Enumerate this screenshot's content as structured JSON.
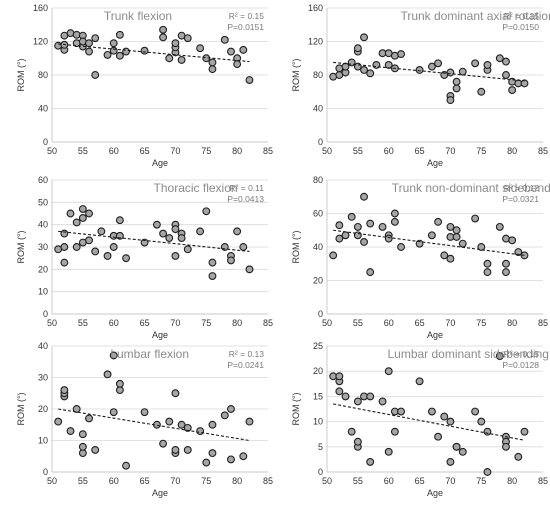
{
  "chart_data": [
    {
      "type": "scatter",
      "title": "Trunk flexion",
      "xlabel": "Age",
      "ylabel": "ROM (°)",
      "xlim": [
        50,
        85
      ],
      "ylim": [
        0,
        160
      ],
      "xticks": [
        50,
        55,
        60,
        65,
        70,
        75,
        80,
        85
      ],
      "yticks": [
        0,
        40,
        80,
        120,
        160
      ],
      "r2_text": "R² = 0.15",
      "p_text": "P=0.0151",
      "trend": {
        "x1": 51,
        "y1": 117,
        "x2": 82,
        "y2": 96
      },
      "points": [
        [
          51,
          115
        ],
        [
          52,
          110
        ],
        [
          52,
          127
        ],
        [
          52,
          116
        ],
        [
          53,
          130
        ],
        [
          54,
          118
        ],
        [
          54,
          128
        ],
        [
          55,
          114
        ],
        [
          55,
          127
        ],
        [
          55,
          120
        ],
        [
          56,
          108
        ],
        [
          56,
          118
        ],
        [
          57,
          80
        ],
        [
          57,
          124
        ],
        [
          59,
          104
        ],
        [
          60,
          109
        ],
        [
          60,
          118
        ],
        [
          61,
          103
        ],
        [
          61,
          128
        ],
        [
          62,
          108
        ],
        [
          65,
          109
        ],
        [
          68,
          134
        ],
        [
          68,
          125
        ],
        [
          69,
          100
        ],
        [
          70,
          107
        ],
        [
          70,
          113
        ],
        [
          70,
          118
        ],
        [
          71,
          98
        ],
        [
          71,
          127
        ],
        [
          72,
          124
        ],
        [
          74,
          112
        ],
        [
          75,
          100
        ],
        [
          76,
          87
        ],
        [
          76,
          95
        ],
        [
          78,
          122
        ],
        [
          79,
          108
        ],
        [
          80,
          100
        ],
        [
          80,
          93
        ],
        [
          81,
          110
        ],
        [
          82,
          74
        ]
      ]
    },
    {
      "type": "scatter",
      "title": "Trunk dominant axial rotation",
      "xlabel": "Age",
      "ylabel": "ROM (°)",
      "xlim": [
        50,
        85
      ],
      "ylim": [
        0,
        160
      ],
      "xticks": [
        50,
        55,
        60,
        65,
        70,
        75,
        80,
        85
      ],
      "yticks": [
        0,
        40,
        80,
        120,
        160
      ],
      "r2_text": "R² = 0.15",
      "p_text": "P=0.0150",
      "trend": {
        "x1": 51,
        "y1": 95,
        "x2": 82,
        "y2": 73
      },
      "points": [
        [
          51,
          78
        ],
        [
          52,
          80
        ],
        [
          52,
          88
        ],
        [
          53,
          83
        ],
        [
          53,
          90
        ],
        [
          54,
          95
        ],
        [
          55,
          108
        ],
        [
          55,
          112
        ],
        [
          55,
          90
        ],
        [
          56,
          125
        ],
        [
          56,
          86
        ],
        [
          57,
          82
        ],
        [
          58,
          92
        ],
        [
          59,
          106
        ],
        [
          60,
          106
        ],
        [
          60,
          92
        ],
        [
          61,
          88
        ],
        [
          61,
          103
        ],
        [
          62,
          105
        ],
        [
          65,
          86
        ],
        [
          67,
          90
        ],
        [
          68,
          94
        ],
        [
          69,
          80
        ],
        [
          70,
          83
        ],
        [
          70,
          55
        ],
        [
          70,
          50
        ],
        [
          71,
          64
        ],
        [
          71,
          72
        ],
        [
          72,
          84
        ],
        [
          74,
          94
        ],
        [
          75,
          60
        ],
        [
          76,
          86
        ],
        [
          76,
          92
        ],
        [
          78,
          100
        ],
        [
          79,
          96
        ],
        [
          79,
          80
        ],
        [
          80,
          72
        ],
        [
          80,
          62
        ],
        [
          81,
          70
        ],
        [
          82,
          70
        ]
      ]
    },
    {
      "type": "scatter",
      "title": "Thoracic flexion",
      "xlabel": "Age",
      "ylabel": "ROM (°)",
      "xlim": [
        50,
        85
      ],
      "ylim": [
        0,
        60
      ],
      "xticks": [
        50,
        55,
        60,
        65,
        70,
        75,
        80,
        85
      ],
      "yticks": [
        0,
        10,
        20,
        30,
        40,
        50,
        60
      ],
      "r2_text": "R² = 0.11",
      "p_text": "P=0.0413",
      "trend": {
        "x1": 51,
        "y1": 37,
        "x2": 82,
        "y2": 28
      },
      "points": [
        [
          51,
          29
        ],
        [
          52,
          30
        ],
        [
          52,
          23
        ],
        [
          52,
          36
        ],
        [
          53,
          45
        ],
        [
          54,
          41
        ],
        [
          54,
          30
        ],
        [
          55,
          47
        ],
        [
          55,
          43
        ],
        [
          55,
          32
        ],
        [
          56,
          45
        ],
        [
          56,
          33
        ],
        [
          57,
          28
        ],
        [
          58,
          37
        ],
        [
          59,
          26
        ],
        [
          60,
          35
        ],
        [
          60,
          30
        ],
        [
          61,
          42
        ],
        [
          61,
          35
        ],
        [
          62,
          25
        ],
        [
          65,
          32
        ],
        [
          67,
          40
        ],
        [
          68,
          36
        ],
        [
          69,
          34
        ],
        [
          70,
          40
        ],
        [
          70,
          38
        ],
        [
          70,
          26
        ],
        [
          71,
          36
        ],
        [
          71,
          34
        ],
        [
          72,
          29
        ],
        [
          74,
          37
        ],
        [
          75,
          46
        ],
        [
          76,
          23
        ],
        [
          76,
          17
        ],
        [
          78,
          30
        ],
        [
          79,
          26
        ],
        [
          79,
          24
        ],
        [
          80,
          37
        ],
        [
          81,
          30
        ],
        [
          82,
          20
        ]
      ]
    },
    {
      "type": "scatter",
      "title": "Trunk non-dominant sidebending",
      "xlabel": "Age",
      "ylabel": "ROM (°)",
      "xlim": [
        50,
        85
      ],
      "ylim": [
        0,
        80
      ],
      "xticks": [
        50,
        55,
        60,
        65,
        70,
        75,
        80,
        85
      ],
      "yticks": [
        0,
        20,
        40,
        60,
        80
      ],
      "r2_text": "R² = 0.12",
      "p_text": "P=0.0321",
      "trend": {
        "x1": 51,
        "y1": 50,
        "x2": 82,
        "y2": 35
      },
      "points": [
        [
          51,
          35
        ],
        [
          52,
          53
        ],
        [
          52,
          45
        ],
        [
          53,
          47
        ],
        [
          54,
          58
        ],
        [
          55,
          52
        ],
        [
          55,
          47
        ],
        [
          56,
          70
        ],
        [
          56,
          43
        ],
        [
          57,
          25
        ],
        [
          57,
          54
        ],
        [
          59,
          52
        ],
        [
          60,
          47
        ],
        [
          60,
          45
        ],
        [
          61,
          60
        ],
        [
          61,
          55
        ],
        [
          62,
          40
        ],
        [
          65,
          42
        ],
        [
          67,
          47
        ],
        [
          68,
          55
        ],
        [
          69,
          35
        ],
        [
          70,
          52
        ],
        [
          70,
          46
        ],
        [
          70,
          33
        ],
        [
          71,
          50
        ],
        [
          71,
          46
        ],
        [
          72,
          42
        ],
        [
          74,
          57
        ],
        [
          75,
          40
        ],
        [
          76,
          30
        ],
        [
          76,
          25
        ],
        [
          78,
          52
        ],
        [
          79,
          45
        ],
        [
          79,
          30
        ],
        [
          79,
          25
        ],
        [
          80,
          44
        ],
        [
          81,
          37
        ],
        [
          82,
          35
        ]
      ]
    },
    {
      "type": "scatter",
      "title": "Lumbar flexion",
      "xlabel": "Age",
      "ylabel": "ROM (°)",
      "xlim": [
        50,
        85
      ],
      "ylim": [
        0,
        40
      ],
      "xticks": [
        50,
        55,
        60,
        65,
        70,
        75,
        80,
        85
      ],
      "yticks": [
        0,
        10,
        20,
        30,
        40
      ],
      "r2_text": "R² = 0.13",
      "p_text": "P=0.0241",
      "trend": {
        "x1": 51,
        "y1": 20,
        "x2": 82,
        "y2": 10
      },
      "points": [
        [
          51,
          16
        ],
        [
          52,
          24
        ],
        [
          52,
          25
        ],
        [
          52,
          26
        ],
        [
          53,
          13
        ],
        [
          54,
          20
        ],
        [
          55,
          6
        ],
        [
          55,
          8
        ],
        [
          55,
          12
        ],
        [
          56,
          17
        ],
        [
          57,
          7
        ],
        [
          59,
          31
        ],
        [
          60,
          37
        ],
        [
          60,
          19
        ],
        [
          61,
          26
        ],
        [
          61,
          28
        ],
        [
          62,
          2
        ],
        [
          65,
          19
        ],
        [
          67,
          15
        ],
        [
          68,
          9
        ],
        [
          69,
          16
        ],
        [
          70,
          25
        ],
        [
          70,
          6
        ],
        [
          70,
          7
        ],
        [
          71,
          15
        ],
        [
          72,
          14
        ],
        [
          72,
          7
        ],
        [
          74,
          13
        ],
        [
          75,
          3
        ],
        [
          76,
          6
        ],
        [
          76,
          15
        ],
        [
          78,
          18
        ],
        [
          79,
          20
        ],
        [
          79,
          4
        ],
        [
          81,
          5
        ],
        [
          82,
          16
        ]
      ]
    },
    {
      "type": "scatter",
      "title": "Lumbar dominant sidebending",
      "xlabel": "Age",
      "ylabel": "ROM (°)",
      "xlim": [
        50,
        85
      ],
      "ylim": [
        0,
        25
      ],
      "xticks": [
        50,
        55,
        60,
        65,
        70,
        75,
        80,
        85
      ],
      "yticks": [
        0,
        5,
        10,
        15,
        20,
        25
      ],
      "r2_text": "R² = 0.15",
      "p_text": "P=0.0128",
      "trend": {
        "x1": 51,
        "y1": 13.5,
        "x2": 82,
        "y2": 6.3
      },
      "points": [
        [
          51,
          19
        ],
        [
          52,
          16
        ],
        [
          52,
          18
        ],
        [
          52,
          19
        ],
        [
          53,
          15
        ],
        [
          54,
          8
        ],
        [
          55,
          5
        ],
        [
          55,
          6
        ],
        [
          55,
          14
        ],
        [
          56,
          15
        ],
        [
          57,
          2
        ],
        [
          57,
          15
        ],
        [
          59,
          14
        ],
        [
          60,
          20
        ],
        [
          60,
          4
        ],
        [
          61,
          12
        ],
        [
          61,
          8
        ],
        [
          62,
          12
        ],
        [
          65,
          18
        ],
        [
          67,
          12
        ],
        [
          68,
          7
        ],
        [
          69,
          11
        ],
        [
          70,
          10
        ],
        [
          70,
          2
        ],
        [
          71,
          5
        ],
        [
          71,
          5
        ],
        [
          72,
          4
        ],
        [
          74,
          12
        ],
        [
          75,
          10
        ],
        [
          76,
          8
        ],
        [
          76,
          0
        ],
        [
          78,
          23
        ],
        [
          79,
          7
        ],
        [
          79,
          6
        ],
        [
          79,
          5
        ],
        [
          81,
          3
        ],
        [
          82,
          8
        ]
      ]
    }
  ]
}
